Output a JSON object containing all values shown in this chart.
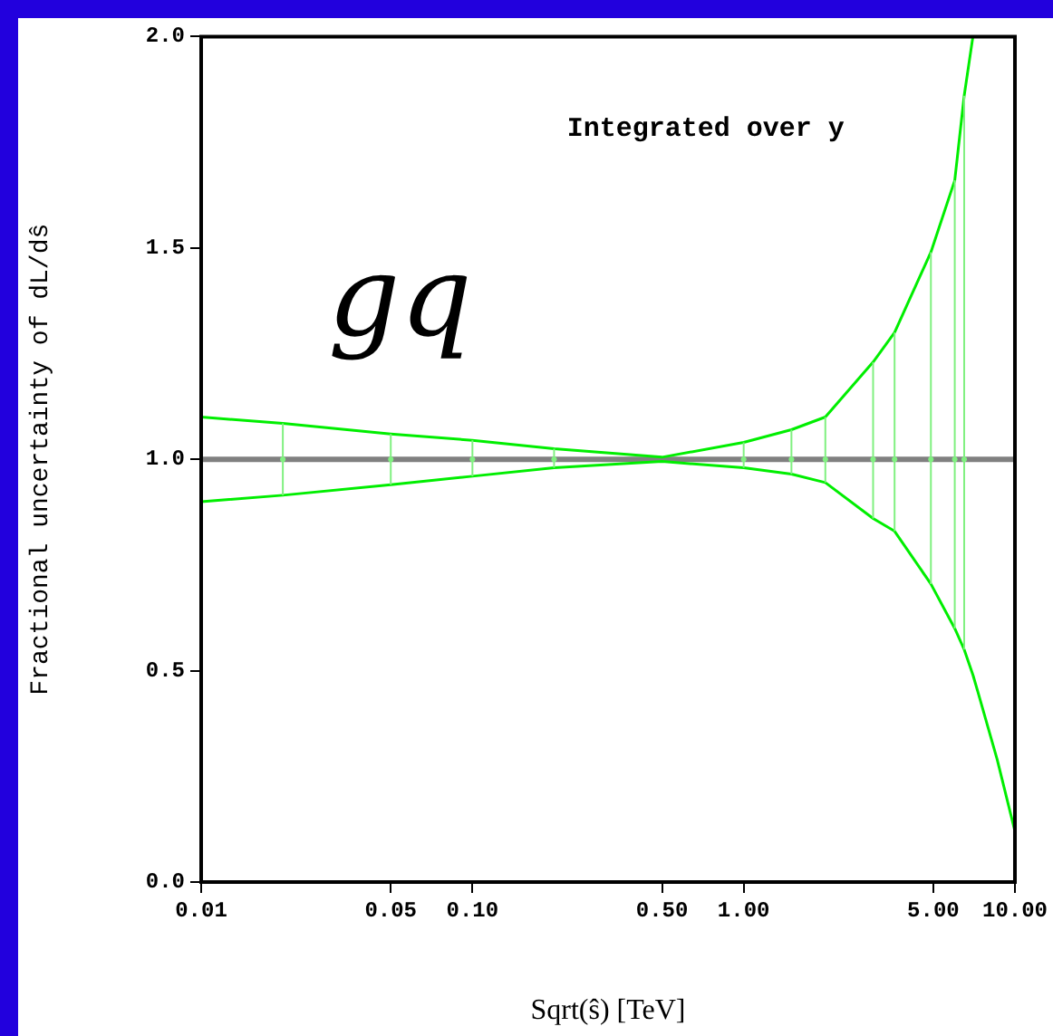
{
  "chart_data": {
    "type": "line",
    "xlabel": "Sqrt(ŝ) [TeV]",
    "ylabel": "Fractional uncertainty of dL/dŝ",
    "annotations": [
      "Integrated over y",
      "gq"
    ],
    "log": "x",
    "xlim": [
      0.01,
      10
    ],
    "ylim": [
      0,
      2
    ],
    "xticks": [
      0.01,
      0.05,
      {
        "value": 0.1,
        "label": "0.10"
      },
      {
        "value": 0.5,
        "label": "0.50"
      },
      {
        "value": 1,
        "label": "1.00"
      },
      {
        "value": 5,
        "label": "5.00"
      },
      {
        "value": 10,
        "label": "10.00"
      }
    ],
    "yticks": [
      {
        "value": 0,
        "label": "0.0"
      },
      0.5,
      {
        "value": 1,
        "label": "1.0"
      },
      1.5,
      {
        "value": 2,
        "label": "2.0"
      }
    ],
    "grid": false,
    "marker": "none",
    "ref_lines": [
      {
        "axis": "y",
        "value": 1,
        "color": "#808080"
      }
    ],
    "series": [
      {
        "color": "#00ee00",
        "x": [
          0.01,
          0.02,
          0.05,
          0.1,
          0.2,
          0.5,
          1,
          1.5,
          2,
          3,
          3.6,
          4.9,
          6,
          6.5,
          7
        ],
        "values": [
          1.1,
          1.085,
          1.06,
          1.045,
          1.025,
          1.005,
          1.04,
          1.07,
          1.1,
          1.23,
          1.3,
          1.49,
          1.66,
          1.86,
          2.0
        ]
      },
      {
        "color": "#00ee00",
        "x": [
          0.01,
          0.02,
          0.05,
          0.1,
          0.2,
          0.5,
          1,
          1.5,
          2,
          3,
          3.6,
          4.9,
          6,
          6.5,
          7,
          7.3,
          8.6,
          10
        ],
        "values": [
          0.9,
          0.915,
          0.94,
          0.96,
          0.98,
          0.995,
          0.98,
          0.965,
          0.945,
          0.86,
          0.83,
          0.705,
          0.6,
          0.55,
          0.49,
          0.45,
          0.29,
          0.12
        ]
      },
      {
        "type": "scatter",
        "marker": "circle",
        "color": "#80f080",
        "x": [
          0.02,
          0.05,
          0.1,
          0.2,
          1,
          1.5,
          2,
          3,
          3.6,
          4.9,
          6,
          6.5
        ],
        "values": [
          1,
          1,
          1,
          1,
          1,
          1,
          1,
          1,
          1,
          1,
          1,
          1
        ],
        "errors": [
          [
            0.915,
            1.085
          ],
          [
            0.94,
            1.06
          ],
          [
            0.96,
            1.045
          ],
          [
            0.98,
            1.025
          ],
          [
            0.98,
            1.04
          ],
          [
            0.965,
            1.07
          ],
          [
            0.945,
            1.1
          ],
          [
            0.86,
            1.23
          ],
          [
            0.83,
            1.3
          ],
          [
            0.705,
            1.49
          ],
          [
            0.6,
            1.66
          ],
          [
            0.55,
            1.86
          ]
        ]
      }
    ]
  }
}
